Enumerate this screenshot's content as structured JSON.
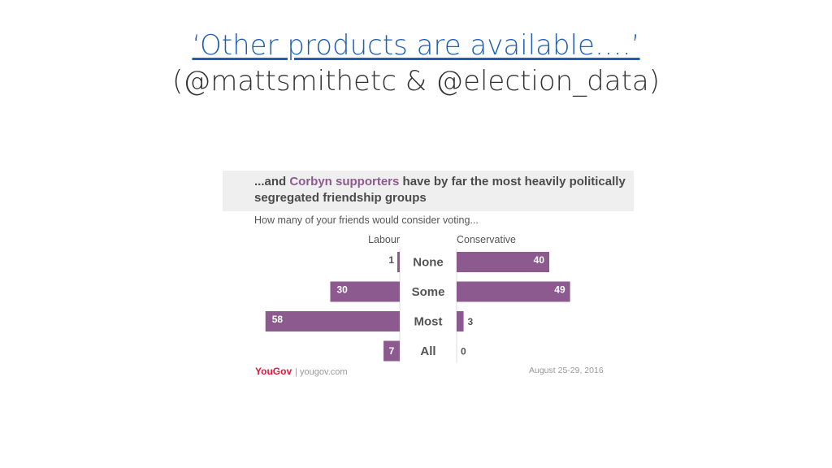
{
  "slide": {
    "title_line1": "‘Other products are available….’",
    "title_line2": "(@mattsmithetc & @election_data)"
  },
  "chart_data": {
    "type": "bar",
    "title_parts": [
      "...and ",
      "Corbyn supporters",
      " have by far the most heavily politically segregated friendship groups"
    ],
    "subtitle": "How many of your friends would consider voting...",
    "categories": [
      "None",
      "Some",
      "Most",
      "All"
    ],
    "series": [
      {
        "name": "Labour",
        "values": [
          1,
          30,
          58,
          7
        ],
        "color": "#8d5a8f"
      },
      {
        "name": "Conservative",
        "values": [
          40,
          49,
          3,
          0
        ],
        "color": "#8d5a8f"
      }
    ],
    "grid": false,
    "legend": "column headers above bars"
  },
  "footer": {
    "brand": "YouGov",
    "url": "yougov.com",
    "date": "August 25-29, 2016"
  },
  "colors": {
    "bar": "#8d5a8f",
    "accent_text": "#8d5a8f",
    "title_link": "#1f5fb5",
    "brand_red": "#e3173a"
  }
}
